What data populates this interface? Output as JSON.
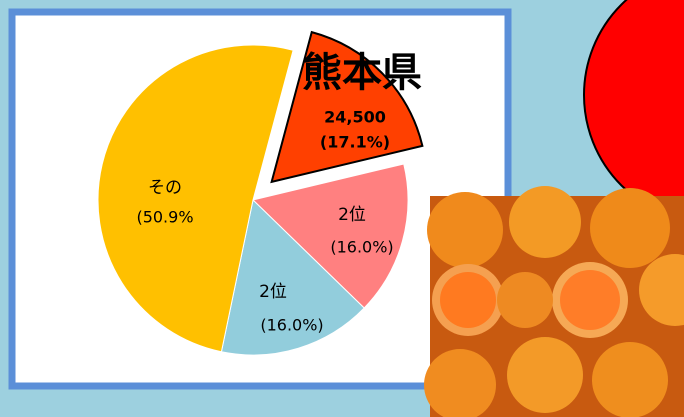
{
  "chart_data": {
    "type": "pie",
    "categories": [
      "熊本県",
      "2位",
      "2位",
      "その"
    ],
    "values": [
      17.1,
      16.0,
      16.0,
      50.9
    ],
    "value_labels": [
      "(17.1%)",
      "(16.0%)",
      "(16.0%)",
      "(50.9%"
    ],
    "annotation": "24,500",
    "colors": [
      "#ff4000",
      "#ff8080",
      "#92cddc",
      "#ffc000"
    ],
    "explode": [
      true,
      false,
      false,
      false
    ]
  }
}
